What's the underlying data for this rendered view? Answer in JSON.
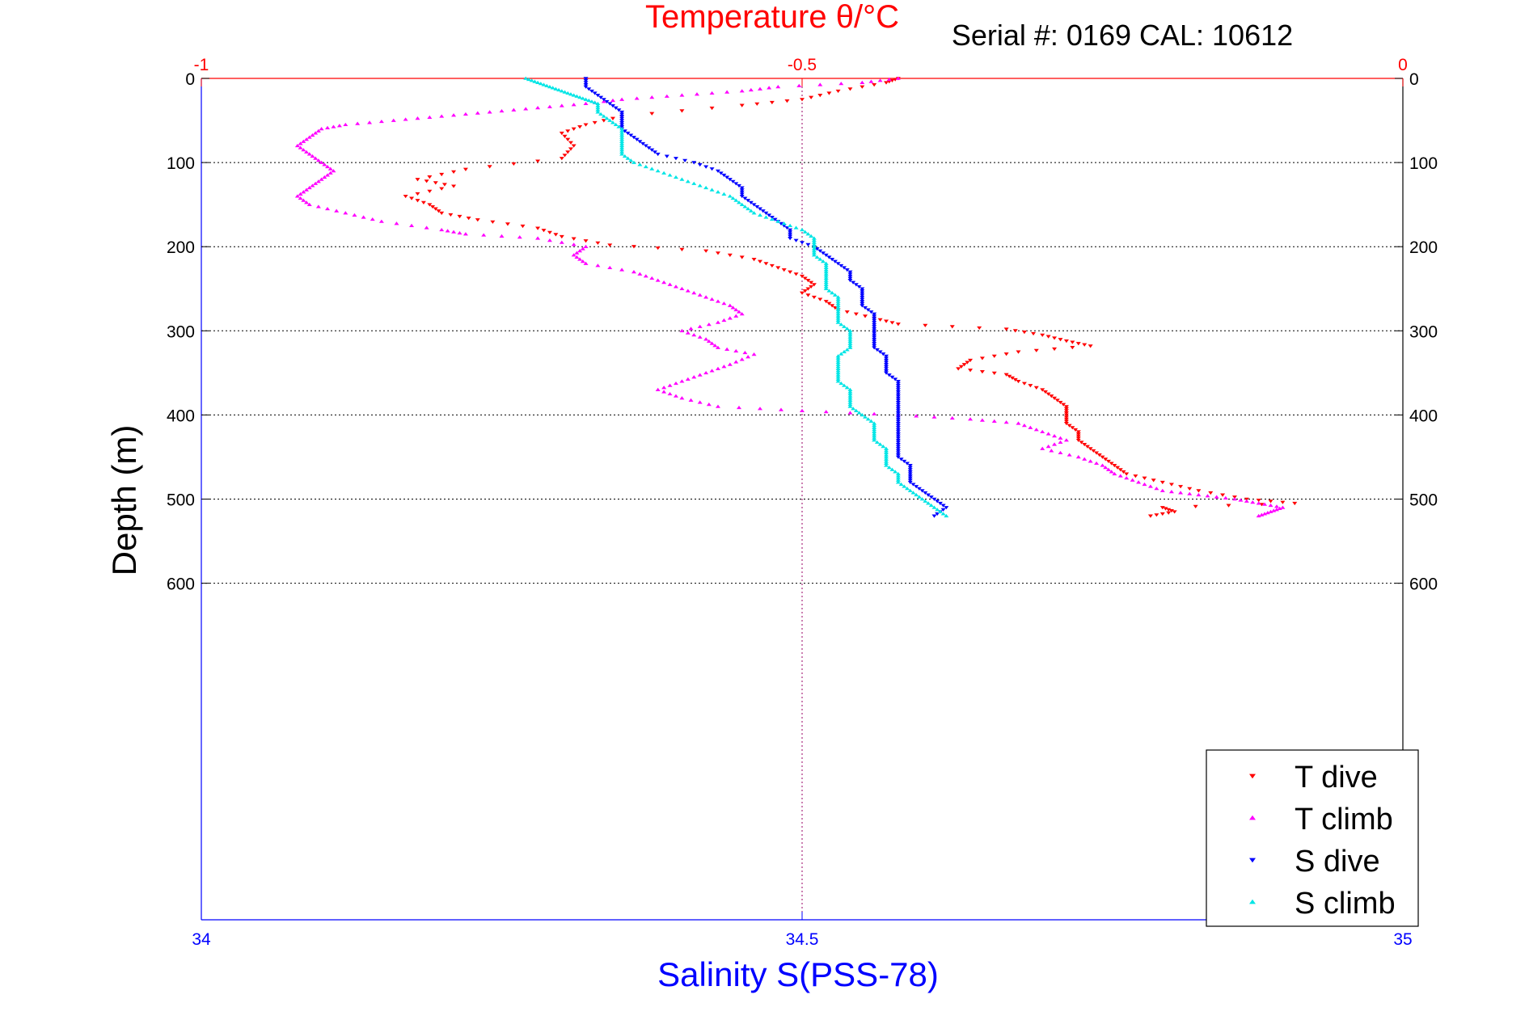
{
  "chart_data": {
    "type": "scatter",
    "title": "Temperature θ/°C",
    "subtitle": "Serial #: 0169 CAL: 10612",
    "xlabel": "Salinity S(PSS-78)",
    "ylabel": "Depth (m)",
    "x_axis_bottom": {
      "range": [
        34,
        35
      ],
      "ticks": [
        "34",
        "34.5",
        "35"
      ],
      "color": "#0000ff"
    },
    "x_axis_top": {
      "range": [
        -1,
        0
      ],
      "ticks": [
        "-1",
        "-0.5",
        "0"
      ],
      "color": "#ff0000"
    },
    "y_axis": {
      "range": [
        0,
        1000
      ],
      "reversed": true,
      "ticks": [
        "0",
        "100",
        "200",
        "300",
        "400",
        "500",
        "600"
      ]
    },
    "grid": true,
    "legend": "bottom-right",
    "series": [
      {
        "name": "T dive",
        "axis": "temperature",
        "color": "#ff0000",
        "marker": "triangle-down",
        "points": [
          [
            -0.42,
            0
          ],
          [
            -0.43,
            5
          ],
          [
            -0.47,
            15
          ],
          [
            -0.5,
            25
          ],
          [
            -0.55,
            32
          ],
          [
            -0.65,
            45
          ],
          [
            -0.68,
            55
          ],
          [
            -0.7,
            65
          ],
          [
            -0.69,
            80
          ],
          [
            -0.7,
            95
          ],
          [
            -0.78,
            108
          ],
          [
            -0.82,
            120
          ],
          [
            -0.79,
            128
          ],
          [
            -0.83,
            140
          ],
          [
            -0.81,
            150
          ],
          [
            -0.8,
            160
          ],
          [
            -0.77,
            168
          ],
          [
            -0.72,
            178
          ],
          [
            -0.7,
            188
          ],
          [
            -0.66,
            198
          ],
          [
            -0.58,
            205
          ],
          [
            -0.54,
            215
          ],
          [
            -0.52,
            225
          ],
          [
            -0.5,
            235
          ],
          [
            -0.49,
            245
          ],
          [
            -0.5,
            255
          ],
          [
            -0.48,
            265
          ],
          [
            -0.47,
            275
          ],
          [
            -0.44,
            285
          ],
          [
            -0.42,
            292
          ],
          [
            -0.33,
            298
          ],
          [
            -0.3,
            305
          ],
          [
            -0.28,
            312
          ],
          [
            -0.26,
            318
          ],
          [
            -0.32,
            325
          ],
          [
            -0.36,
            335
          ],
          [
            -0.37,
            345
          ],
          [
            -0.33,
            352
          ],
          [
            -0.32,
            360
          ],
          [
            -0.3,
            370
          ],
          [
            -0.29,
            380
          ],
          [
            -0.28,
            390
          ],
          [
            -0.28,
            400
          ],
          [
            -0.28,
            410
          ],
          [
            -0.27,
            420
          ],
          [
            -0.27,
            430
          ],
          [
            -0.26,
            440
          ],
          [
            -0.25,
            450
          ],
          [
            -0.24,
            460
          ],
          [
            -0.23,
            470
          ],
          [
            -0.2,
            480
          ],
          [
            -0.17,
            490
          ],
          [
            -0.13,
            500
          ],
          [
            -0.09,
            505
          ],
          [
            -0.2,
            510
          ],
          [
            -0.19,
            515
          ],
          [
            -0.21,
            520
          ]
        ]
      },
      {
        "name": "T climb",
        "axis": "temperature",
        "color": "#ff00ff",
        "marker": "triangle-up",
        "points": [
          [
            -0.42,
            0
          ],
          [
            -0.45,
            5
          ],
          [
            -0.52,
            10
          ],
          [
            -0.55,
            15
          ],
          [
            -0.6,
            20
          ],
          [
            -0.65,
            25
          ],
          [
            -0.68,
            30
          ],
          [
            -0.72,
            35
          ],
          [
            -0.76,
            40
          ],
          [
            -0.8,
            45
          ],
          [
            -0.84,
            50
          ],
          [
            -0.88,
            55
          ],
          [
            -0.9,
            60
          ],
          [
            -0.91,
            70
          ],
          [
            -0.92,
            80
          ],
          [
            -0.91,
            90
          ],
          [
            -0.9,
            100
          ],
          [
            -0.89,
            110
          ],
          [
            -0.9,
            120
          ],
          [
            -0.91,
            130
          ],
          [
            -0.92,
            140
          ],
          [
            -0.91,
            150
          ],
          [
            -0.88,
            160
          ],
          [
            -0.85,
            170
          ],
          [
            -0.8,
            180
          ],
          [
            -0.78,
            185
          ],
          [
            -0.72,
            190
          ],
          [
            -0.68,
            200
          ],
          [
            -0.69,
            210
          ],
          [
            -0.68,
            220
          ],
          [
            -0.64,
            230
          ],
          [
            -0.62,
            240
          ],
          [
            -0.6,
            250
          ],
          [
            -0.58,
            260
          ],
          [
            -0.56,
            270
          ],
          [
            -0.55,
            280
          ],
          [
            -0.57,
            290
          ],
          [
            -0.6,
            300
          ],
          [
            -0.58,
            310
          ],
          [
            -0.57,
            320
          ],
          [
            -0.54,
            328
          ],
          [
            -0.56,
            340
          ],
          [
            -0.58,
            350
          ],
          [
            -0.6,
            360
          ],
          [
            -0.62,
            370
          ],
          [
            -0.6,
            380
          ],
          [
            -0.57,
            390
          ],
          [
            -0.5,
            395
          ],
          [
            -0.42,
            400
          ],
          [
            -0.36,
            405
          ],
          [
            -0.32,
            410
          ],
          [
            -0.3,
            420
          ],
          [
            -0.28,
            430
          ],
          [
            -0.3,
            440
          ],
          [
            -0.27,
            450
          ],
          [
            -0.25,
            460
          ],
          [
            -0.24,
            470
          ],
          [
            -0.22,
            480
          ],
          [
            -0.2,
            490
          ],
          [
            -0.17,
            495
          ],
          [
            -0.14,
            500
          ],
          [
            -0.12,
            505
          ],
          [
            -0.1,
            510
          ],
          [
            -0.11,
            515
          ],
          [
            -0.12,
            520
          ]
        ]
      },
      {
        "name": "S dive",
        "axis": "salinity",
        "color": "#0000ff",
        "marker": "triangle-down",
        "points": [
          [
            34.32,
            0
          ],
          [
            34.32,
            10
          ],
          [
            34.33,
            20
          ],
          [
            34.34,
            30
          ],
          [
            34.35,
            40
          ],
          [
            34.35,
            50
          ],
          [
            34.35,
            60
          ],
          [
            34.36,
            70
          ],
          [
            34.37,
            80
          ],
          [
            34.38,
            90
          ],
          [
            34.41,
            100
          ],
          [
            34.43,
            110
          ],
          [
            34.44,
            120
          ],
          [
            34.45,
            130
          ],
          [
            34.45,
            140
          ],
          [
            34.46,
            150
          ],
          [
            34.47,
            160
          ],
          [
            34.48,
            170
          ],
          [
            34.49,
            180
          ],
          [
            34.49,
            190
          ],
          [
            34.51,
            200
          ],
          [
            34.52,
            210
          ],
          [
            34.53,
            220
          ],
          [
            34.54,
            230
          ],
          [
            34.54,
            240
          ],
          [
            34.55,
            250
          ],
          [
            34.55,
            260
          ],
          [
            34.55,
            270
          ],
          [
            34.56,
            280
          ],
          [
            34.56,
            290
          ],
          [
            34.56,
            300
          ],
          [
            34.56,
            310
          ],
          [
            34.56,
            320
          ],
          [
            34.57,
            330
          ],
          [
            34.57,
            340
          ],
          [
            34.57,
            350
          ],
          [
            34.58,
            360
          ],
          [
            34.58,
            370
          ],
          [
            34.58,
            380
          ],
          [
            34.58,
            390
          ],
          [
            34.58,
            400
          ],
          [
            34.58,
            410
          ],
          [
            34.58,
            420
          ],
          [
            34.58,
            430
          ],
          [
            34.58,
            440
          ],
          [
            34.58,
            450
          ],
          [
            34.59,
            460
          ],
          [
            34.59,
            470
          ],
          [
            34.59,
            480
          ],
          [
            34.6,
            490
          ],
          [
            34.61,
            500
          ],
          [
            34.62,
            510
          ],
          [
            34.61,
            520
          ]
        ]
      },
      {
        "name": "S climb",
        "axis": "salinity",
        "color": "#00e5e5",
        "marker": "triangle-up",
        "points": [
          [
            34.27,
            0
          ],
          [
            34.28,
            5
          ],
          [
            34.29,
            10
          ],
          [
            34.3,
            15
          ],
          [
            34.31,
            20
          ],
          [
            34.32,
            25
          ],
          [
            34.33,
            30
          ],
          [
            34.33,
            40
          ],
          [
            34.34,
            50
          ],
          [
            34.35,
            60
          ],
          [
            34.35,
            70
          ],
          [
            34.35,
            80
          ],
          [
            34.35,
            90
          ],
          [
            34.36,
            100
          ],
          [
            34.38,
            110
          ],
          [
            34.4,
            120
          ],
          [
            34.42,
            130
          ],
          [
            34.44,
            140
          ],
          [
            34.45,
            150
          ],
          [
            34.46,
            160
          ],
          [
            34.48,
            170
          ],
          [
            34.5,
            180
          ],
          [
            34.51,
            190
          ],
          [
            34.51,
            200
          ],
          [
            34.51,
            210
          ],
          [
            34.52,
            220
          ],
          [
            34.52,
            230
          ],
          [
            34.52,
            240
          ],
          [
            34.52,
            250
          ],
          [
            34.53,
            260
          ],
          [
            34.53,
            270
          ],
          [
            34.53,
            280
          ],
          [
            34.53,
            290
          ],
          [
            34.54,
            300
          ],
          [
            34.54,
            310
          ],
          [
            34.54,
            320
          ],
          [
            34.53,
            330
          ],
          [
            34.53,
            340
          ],
          [
            34.53,
            350
          ],
          [
            34.53,
            360
          ],
          [
            34.54,
            370
          ],
          [
            34.54,
            380
          ],
          [
            34.54,
            390
          ],
          [
            34.55,
            400
          ],
          [
            34.56,
            410
          ],
          [
            34.56,
            420
          ],
          [
            34.56,
            430
          ],
          [
            34.57,
            440
          ],
          [
            34.57,
            450
          ],
          [
            34.57,
            460
          ],
          [
            34.58,
            470
          ],
          [
            34.58,
            480
          ],
          [
            34.59,
            490
          ],
          [
            34.6,
            500
          ],
          [
            34.61,
            510
          ],
          [
            34.62,
            520
          ]
        ]
      }
    ]
  }
}
